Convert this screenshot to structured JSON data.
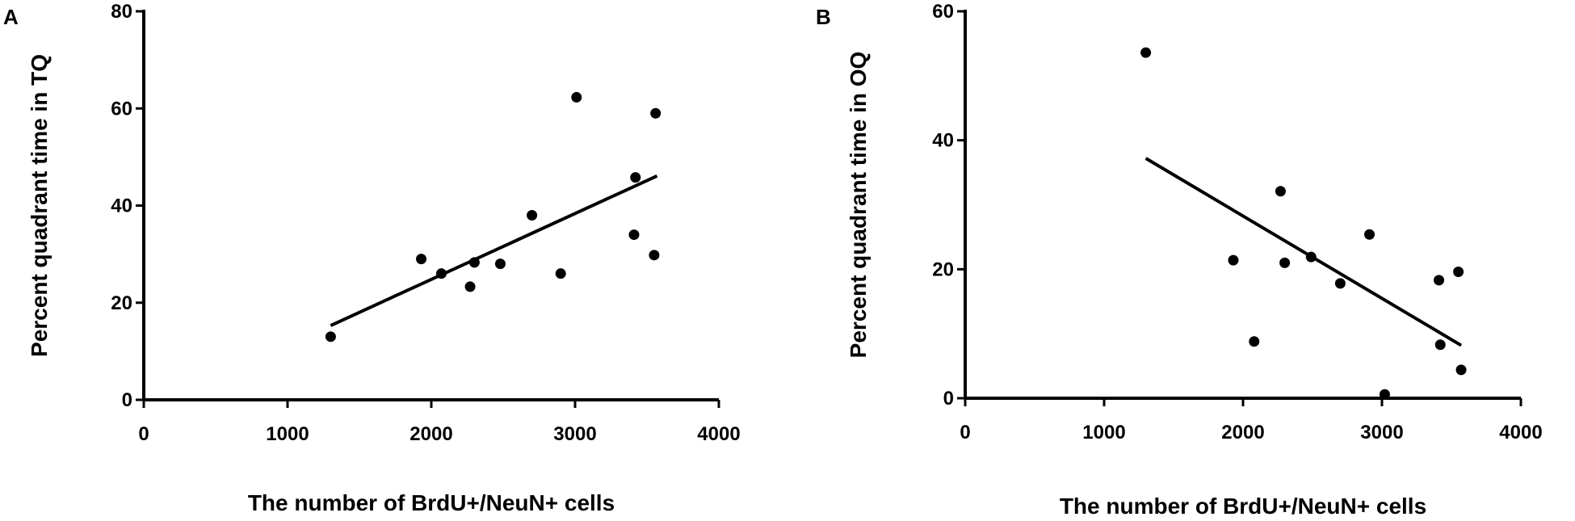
{
  "chart_data": [
    {
      "panel": "A",
      "type": "scatter",
      "title": "",
      "xlabel": "The number of BrdU+/NeuN+ cells",
      "ylabel": "Percent quadrant time in TQ",
      "xlim": [
        0,
        4000
      ],
      "ylim": [
        0,
        80
      ],
      "xticks": [
        0,
        1000,
        2000,
        3000,
        4000
      ],
      "yticks": [
        0,
        20,
        40,
        60,
        80
      ],
      "grid": false,
      "points": [
        {
          "x": 1300,
          "y": 13
        },
        {
          "x": 1930,
          "y": 29
        },
        {
          "x": 2070,
          "y": 26
        },
        {
          "x": 2270,
          "y": 23.3
        },
        {
          "x": 2300,
          "y": 28.3
        },
        {
          "x": 2480,
          "y": 28
        },
        {
          "x": 2700,
          "y": 38
        },
        {
          "x": 2900,
          "y": 26
        },
        {
          "x": 3010,
          "y": 62.3
        },
        {
          "x": 3410,
          "y": 34
        },
        {
          "x": 3420,
          "y": 45.8
        },
        {
          "x": 3550,
          "y": 29.8
        },
        {
          "x": 3560,
          "y": 59
        }
      ],
      "trendline": {
        "x": [
          1300,
          3570
        ],
        "y": [
          15.3,
          46.1
        ]
      }
    },
    {
      "panel": "B",
      "type": "scatter",
      "title": "",
      "xlabel": "The number of BrdU+/NeuN+ cells",
      "ylabel": "Percent quadrant time in OQ",
      "xlim": [
        0,
        4000
      ],
      "ylim": [
        0,
        60
      ],
      "xticks": [
        0,
        1000,
        2000,
        3000,
        4000
      ],
      "yticks": [
        0,
        20,
        40,
        60
      ],
      "grid": false,
      "points": [
        {
          "x": 1300,
          "y": 53.6
        },
        {
          "x": 1930,
          "y": 21.4
        },
        {
          "x": 2080,
          "y": 8.8
        },
        {
          "x": 2270,
          "y": 32.1
        },
        {
          "x": 2300,
          "y": 21
        },
        {
          "x": 2490,
          "y": 21.9
        },
        {
          "x": 2700,
          "y": 17.8
        },
        {
          "x": 2910,
          "y": 25.4
        },
        {
          "x": 3020,
          "y": 0.6
        },
        {
          "x": 3410,
          "y": 18.3
        },
        {
          "x": 3420,
          "y": 8.3
        },
        {
          "x": 3550,
          "y": 19.6
        },
        {
          "x": 3570,
          "y": 4.4
        }
      ],
      "trendline": {
        "x": [
          1300,
          3570
        ],
        "y": [
          37.2,
          8.2
        ]
      }
    }
  ]
}
